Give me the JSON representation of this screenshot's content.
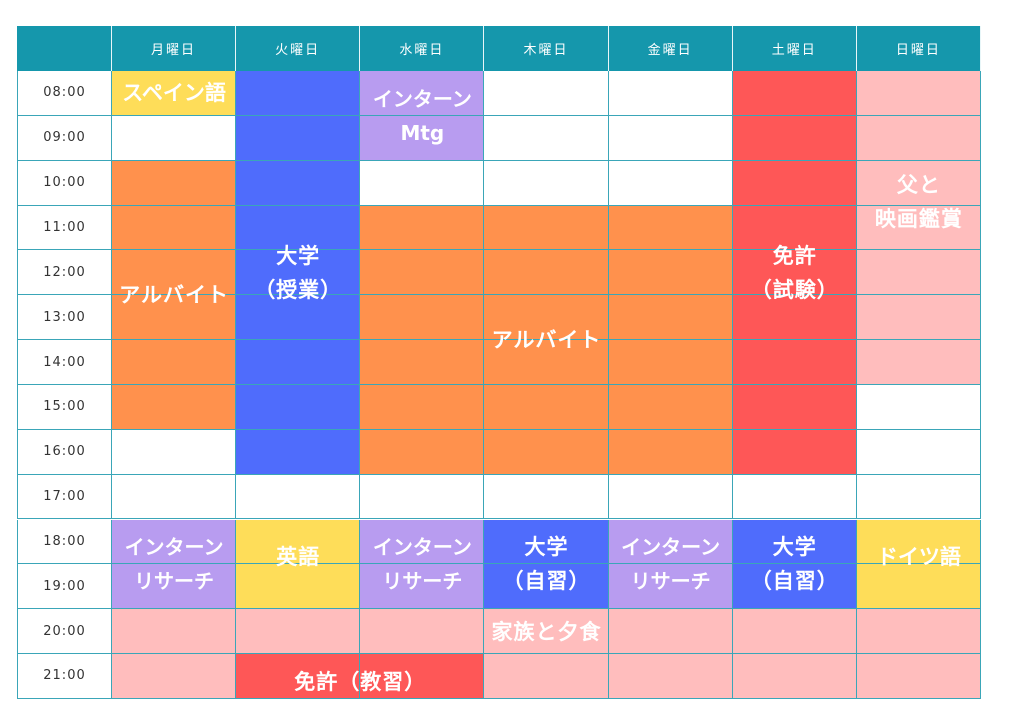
{
  "colors": {
    "header": "#1597ac",
    "grid_line": "#3aa6b8",
    "orange": "#ff914d",
    "blue": "#4f6cfc",
    "purple": "#b89cf0",
    "yellow": "#fedd59",
    "red": "#fe5757",
    "pink": "#ffbdbd"
  },
  "days": [
    "月曜日",
    "火曜日",
    "水曜日",
    "木曜日",
    "金曜日",
    "土曜日",
    "日曜日"
  ],
  "times": [
    "08:00",
    "09:00",
    "10:00",
    "11:00",
    "12:00",
    "13:00",
    "14:00",
    "15:00",
    "16:00",
    "17:00",
    "18:00",
    "19:00",
    "20:00",
    "21:00"
  ],
  "events": [
    {
      "id": "spanish",
      "label": "スペイン語",
      "color": "yellow",
      "col": 0,
      "cols": 1,
      "row": 0,
      "rows": 1
    },
    {
      "id": "arbeit-mon",
      "label": "アルバイト",
      "color": "orange",
      "col": 0,
      "cols": 1,
      "row": 2,
      "rows": 6
    },
    {
      "id": "univ-class",
      "label": "大学\n（授業）",
      "color": "blue",
      "col": 1,
      "cols": 1,
      "row": 0,
      "rows": 9
    },
    {
      "id": "intern-mtg",
      "label": "インターン\nMtg",
      "color": "purple",
      "col": 2,
      "cols": 1,
      "row": 0,
      "rows": 2
    },
    {
      "id": "arbeit-wed-fri",
      "label": "アルバイト",
      "color": "orange",
      "col": 2,
      "cols": 3,
      "row": 3,
      "rows": 6
    },
    {
      "id": "license-sat",
      "label": "免許\n（試験）",
      "color": "red",
      "col": 5,
      "cols": 1,
      "row": 0,
      "rows": 9
    },
    {
      "id": "father-movie",
      "label": "父と\n映画鑑賞",
      "color": "pink",
      "col": 6,
      "cols": 1,
      "row": 0,
      "rows": 7
    },
    {
      "id": "intern-research-mon",
      "label": "インターン\nリサーチ",
      "color": "purple",
      "col": 0,
      "cols": 1,
      "row": 10,
      "rows": 2
    },
    {
      "id": "english",
      "label": "英語",
      "color": "yellow",
      "col": 1,
      "cols": 1,
      "row": 10,
      "rows": 2
    },
    {
      "id": "intern-research-wed",
      "label": "インターン\nリサーチ",
      "color": "purple",
      "col": 2,
      "cols": 1,
      "row": 10,
      "rows": 2
    },
    {
      "id": "univ-self-thu",
      "label": "大学\n（自習）",
      "color": "blue",
      "col": 3,
      "cols": 1,
      "row": 10,
      "rows": 2
    },
    {
      "id": "intern-research-fri",
      "label": "インターン\nリサーチ",
      "color": "purple",
      "col": 4,
      "cols": 1,
      "row": 10,
      "rows": 2
    },
    {
      "id": "univ-self-sat",
      "label": "大学\n（自習）",
      "color": "blue",
      "col": 5,
      "cols": 1,
      "row": 10,
      "rows": 2
    },
    {
      "id": "german",
      "label": "ドイツ語",
      "color": "yellow",
      "col": 6,
      "cols": 1,
      "row": 10,
      "rows": 2
    },
    {
      "id": "family-dinner",
      "label": "家族と夕食",
      "color": "pink",
      "col": 0,
      "cols": 7,
      "row": 12,
      "rows": 2
    },
    {
      "id": "license-lesson",
      "label": "免許（教習）",
      "color": "red",
      "col": 1,
      "cols": 2,
      "row": 13,
      "rows": 1
    }
  ]
}
